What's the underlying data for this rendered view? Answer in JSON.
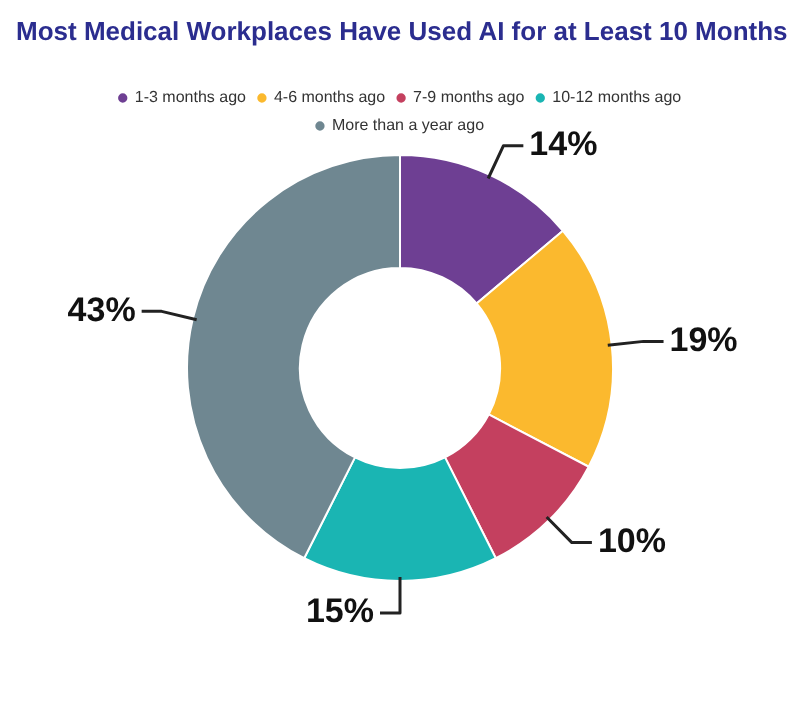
{
  "chart_data": {
    "type": "donut",
    "title": "Most Medical Workplaces Have Used AI for at Least 10 Months",
    "categories": [
      "1-3 months ago",
      "4-6 months ago",
      "7-9 months ago",
      "10-12 months ago",
      "More than a year ago"
    ],
    "values": [
      14,
      19,
      10,
      15,
      43
    ],
    "colors": [
      "#6e3f93",
      "#fbb92e",
      "#c4405f",
      "#1ab5b3",
      "#6f8791"
    ],
    "value_labels": [
      "14%",
      "19%",
      "10%",
      "15%",
      "43%"
    ],
    "legend": "top"
  }
}
